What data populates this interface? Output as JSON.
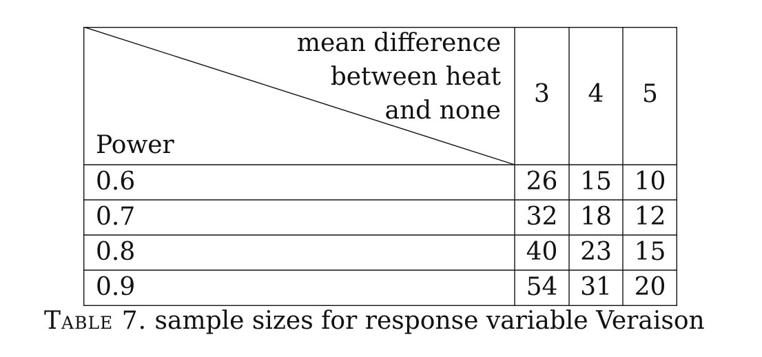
{
  "table": {
    "header_diagonal_lines": [
      "mean difference",
      "between heat",
      "and none"
    ],
    "row_header_label": "Power",
    "column_headers": [
      "3",
      "4",
      "5"
    ],
    "rows": [
      {
        "power": "0.6",
        "values": [
          "26",
          "15",
          "10"
        ]
      },
      {
        "power": "0.7",
        "values": [
          "32",
          "18",
          "12"
        ]
      },
      {
        "power": "0.8",
        "values": [
          "40",
          "23",
          "15"
        ]
      },
      {
        "power": "0.9",
        "values": [
          "54",
          "31",
          "20"
        ]
      }
    ]
  },
  "caption": {
    "label": "Table 7.",
    "text": "sample sizes for response variable Veraison"
  }
}
